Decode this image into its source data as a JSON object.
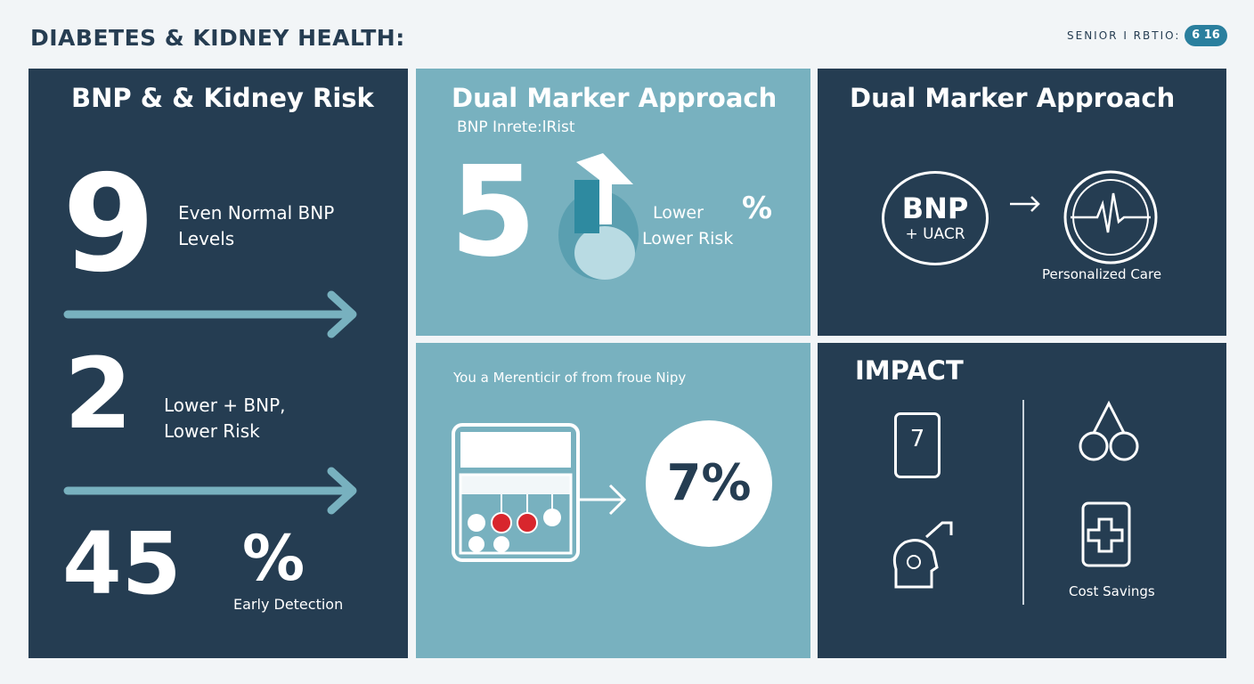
{
  "header": {
    "title": "DIABETES & KIDNEY HEALTH:",
    "ratio_label": "SENIOR I RBTIO:",
    "ratio_value": "6 16"
  },
  "panel_left": {
    "heading": "BNP & & Kidney Risk",
    "stat1": "9",
    "stat1_text": [
      "Even Normal BNP",
      "Levels"
    ],
    "stat2": "2",
    "stat2_text": [
      "Lower + BNP,",
      "Lower Risk"
    ],
    "stat3": "45",
    "stat3_unit": "%",
    "stat3_text": "Early Detection"
  },
  "panel_mid_top": {
    "heading": "Dual Marker Approach",
    "subheading": "BNP Inrete:lRist",
    "stat": "5",
    "unit": "%",
    "text": [
      "Lower",
      "Lower Risk"
    ]
  },
  "panel_mid_bottom": {
    "caption": "You a Merenticir of from froue Nipy",
    "stat": "7%"
  },
  "panel_right_top": {
    "heading": "Dual Marker Approach",
    "marker_main": "BNP",
    "marker_sub": "+ UACR",
    "caption": "Personalized Care"
  },
  "panel_right_bottom": {
    "heading": "IMPACT",
    "device_label": "7",
    "caption": "Cost Savings"
  },
  "colors": {
    "dark": "#253d52",
    "teal": "#78b1bf",
    "arrow": "#78b1bf",
    "red": "#d8262d"
  }
}
